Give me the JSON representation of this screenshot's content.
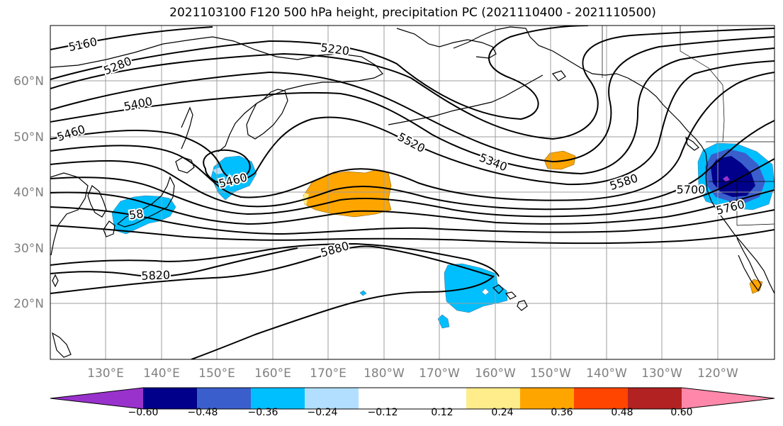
{
  "title": "2021103100 F120 500 hPa height, precipitation PC (2021110400 - 2021110500)",
  "lat_labels": [
    "60°N",
    "50°N",
    "40°N",
    "30°N",
    "20°N"
  ],
  "lon_labels": [
    "130°E",
    "140°E",
    "150°E",
    "160°E",
    "170°E",
    "180°W",
    "170°W",
    "160°W",
    "150°W",
    "140°W",
    "130°W",
    "120°W"
  ],
  "contour_labels": [
    "5160",
    "5280",
    "5400",
    "5460",
    "5220",
    "5460",
    "5520",
    "5340",
    "5580",
    "5700",
    "5760",
    "5880",
    "5820",
    "58"
  ],
  "colorbar": {
    "colors": [
      "#9932cc",
      "#00008b",
      "#3a5fcd",
      "#00bfff",
      "#b2dfff",
      "#ffffff",
      "#ffffff",
      "#ffec8b",
      "#ffa500",
      "#ff4500",
      "#b22222",
      "#ff88aa"
    ],
    "tick_labels": [
      "−0.60",
      "−0.48",
      "−0.36",
      "−0.24",
      "−0.12",
      "0.12",
      "0.24",
      "0.36",
      "0.48",
      "0.60"
    ]
  },
  "colors": {
    "negative_light": "#00bfff",
    "negative_mid": "#3a5fcd",
    "negative_dark": "#00008b",
    "positive": "#ffa500",
    "positive_light": "#ffec8b",
    "grid": "#9e9e9e",
    "axis_label": "#808080"
  }
}
